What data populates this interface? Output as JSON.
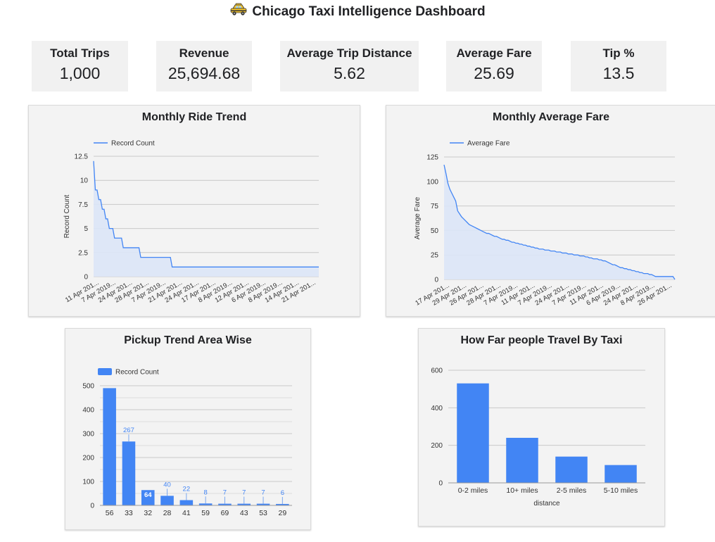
{
  "header": {
    "title": "Chicago Taxi Intelligence Dashboard",
    "icon": "taxi-icon"
  },
  "kpis": [
    {
      "label": "Total Trips",
      "value": "1,000"
    },
    {
      "label": "Revenue",
      "value": "25,694.68"
    },
    {
      "label": "Average Trip Distance",
      "value": "5.62"
    },
    {
      "label": "Average Fare",
      "value": "25.69"
    },
    {
      "label": "Tip %",
      "value": "13.5"
    }
  ],
  "colors": {
    "series": "#4285f4",
    "area": "#dbe6f7",
    "grid": "#c8c8c8"
  },
  "chart_data": [
    {
      "type": "line",
      "title": "Monthly Ride Trend",
      "ylabel": "Record Count",
      "xlabel": "",
      "ylim": [
        0,
        12.5
      ],
      "yticks": [
        "0",
        "2.5",
        "5",
        "7.5",
        "10",
        "12.5"
      ],
      "legend": "top-left",
      "series": [
        {
          "name": "Record Count",
          "values": [
            12,
            9,
            9,
            8,
            8,
            7,
            7,
            6,
            6,
            5,
            5,
            5,
            4,
            4,
            4,
            4,
            4,
            3,
            3,
            3,
            3,
            3,
            3,
            3,
            3,
            3,
            3,
            2,
            2,
            2,
            2,
            2,
            2,
            2,
            2,
            2,
            2,
            2,
            2,
            2,
            2,
            2,
            2,
            2,
            2,
            1,
            1,
            1,
            1,
            1,
            1,
            1,
            1,
            1,
            1,
            1,
            1,
            1,
            1,
            1,
            1,
            1,
            1,
            1,
            1,
            1,
            1,
            1,
            1,
            1,
            1,
            1,
            1,
            1,
            1,
            1,
            1,
            1,
            1,
            1,
            1,
            1,
            1,
            1,
            1,
            1,
            1,
            1,
            1,
            1,
            1,
            1,
            1,
            1,
            1,
            1,
            1,
            1,
            1,
            1,
            1,
            1,
            1,
            1,
            1,
            1,
            1,
            1,
            1,
            1,
            1,
            1,
            1,
            1,
            1,
            1,
            1,
            1,
            1,
            1,
            1,
            1,
            1,
            1,
            1,
            1,
            1,
            1,
            1,
            1
          ]
        }
      ],
      "xticks": [
        "11 Apr 201...",
        "7 Apr 2019...",
        "24 Apr 201...",
        "28 Apr 201...",
        "7 Apr 2019...",
        "21 Apr 201...",
        "24 Apr 201...",
        "17 Apr 201...",
        "8 Apr 2019...",
        "12 Apr 201...",
        "6 Apr 2019...",
        "8 Apr 2019...",
        "14 Apr 201...",
        "21 Apr 201..."
      ]
    },
    {
      "type": "line",
      "title": "Monthly  Average Fare",
      "ylabel": "Average Fare",
      "xlabel": "",
      "ylim": [
        0,
        125
      ],
      "yticks": [
        "0",
        "25",
        "50",
        "75",
        "100",
        "125"
      ],
      "legend": "top-left",
      "series": [
        {
          "name": "Average Fare",
          "values": [
            117,
            108,
            98,
            92,
            88,
            84,
            80,
            70,
            67,
            64,
            62,
            60,
            58,
            56,
            55,
            54,
            53,
            52,
            51,
            50,
            49,
            48,
            47,
            47,
            46,
            45,
            44,
            44,
            43,
            42,
            41,
            41,
            40,
            40,
            39,
            38,
            38,
            37,
            37,
            36,
            36,
            35,
            35,
            34,
            34,
            33,
            33,
            32,
            32,
            31,
            31,
            31,
            30,
            30,
            30,
            29,
            29,
            29,
            28,
            28,
            28,
            27,
            27,
            27,
            26,
            26,
            26,
            25,
            25,
            25,
            24,
            24,
            24,
            23,
            23,
            22,
            22,
            21,
            21,
            21,
            20,
            20,
            19,
            19,
            18,
            17,
            16,
            15,
            15,
            14,
            13,
            12,
            12,
            11,
            11,
            10,
            10,
            9,
            9,
            8,
            8,
            7,
            7,
            6,
            6,
            6,
            5,
            5,
            4,
            3,
            3,
            3,
            3,
            3,
            3,
            3,
            3,
            3,
            3,
            0
          ]
        }
      ],
      "xticks": [
        "17 Apr 201...",
        "29 Apr 201...",
        "26 Apr 201...",
        "28 Apr 201...",
        "7 Apr 2019...",
        "11 Apr 201...",
        "7 Apr 2019...",
        "24 Apr 201...",
        "7 Apr 2019...",
        "11 Apr 201...",
        "6 Apr 2019...",
        "24 Apr 201...",
        "8 Apr 2019...",
        "26 Apr 201..."
      ]
    },
    {
      "type": "bar",
      "title": "Pickup Trend Area Wise",
      "xlabel": "",
      "ylabel": "",
      "ylim": [
        0,
        500
      ],
      "yticks": [
        "0",
        "100",
        "200",
        "300",
        "400",
        "500"
      ],
      "legend": "top-left",
      "categories": [
        "56",
        "33",
        "32",
        "28",
        "41",
        "59",
        "69",
        "43",
        "53",
        "29"
      ],
      "series": [
        {
          "name": "Record Count",
          "values": [
            490,
            267,
            64,
            40,
            22,
            8,
            7,
            7,
            7,
            6
          ]
        }
      ],
      "data_labels": [
        "",
        "267",
        "64",
        "40",
        "22",
        "8",
        "7",
        "7",
        "7",
        "6"
      ]
    },
    {
      "type": "bar",
      "title": "How Far people Travel By Taxi",
      "xlabel": "distance",
      "ylabel": "",
      "ylim": [
        0,
        600
      ],
      "yticks": [
        "0",
        "200",
        "400",
        "600"
      ],
      "categories": [
        "0-2 miles",
        "10+ miles",
        "2-5 miles",
        "5-10 miles"
      ],
      "series": [
        {
          "values": [
            530,
            240,
            140,
            95
          ]
        }
      ]
    }
  ]
}
